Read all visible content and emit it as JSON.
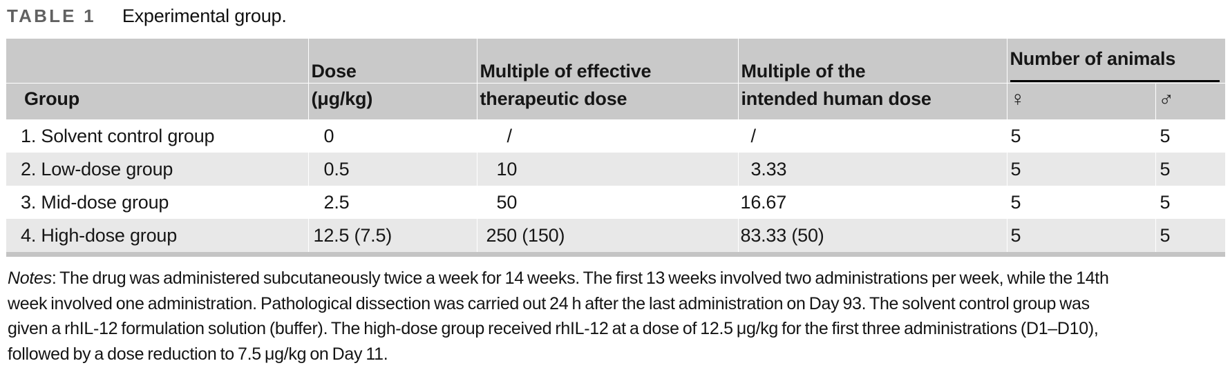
{
  "title": {
    "label": "TABLE 1",
    "caption": "Experimental group."
  },
  "table": {
    "header": {
      "group": "Group",
      "dose_top": "Dose",
      "dose_bottom": "(μg/kg)",
      "eff_top": "Multiple of effective",
      "eff_bottom": "therapeutic dose",
      "human_top": "Multiple of the",
      "human_bottom": "intended human dose",
      "animals": "Number of animals",
      "female": "♀",
      "male": "♂"
    },
    "rows": [
      {
        "group": "1. Solvent control group",
        "dose": "0",
        "mult_eff": "/",
        "mult_human": "/",
        "female": "5",
        "male": "5"
      },
      {
        "group": "2. Low-dose group",
        "dose": "0.5",
        "mult_eff": "10",
        "mult_human": "3.33",
        "female": "5",
        "male": "5"
      },
      {
        "group": "3. Mid-dose group",
        "dose": "2.5",
        "mult_eff": "50",
        "mult_human": "16.67",
        "female": "5",
        "male": "5"
      },
      {
        "group": "4. High-dose group",
        "dose": "12.5 (7.5)",
        "mult_eff": "250 (150)",
        "mult_human": "83.33 (50)",
        "female": "5",
        "male": "5"
      }
    ]
  },
  "notes": {
    "label": "Notes",
    "lines": [
      ": The drug was administered subcutaneously twice a week for 14 weeks. The first 13 weeks involved two administrations per week, while the 14th",
      "week involved one administration. Pathological dissection was carried out 24 h after the last administration on Day 93. The solvent control group was",
      "given a rhIL-12 formulation solution (buffer). The high-dose group received rhIL-12 at a dose of 12.5 μg/kg for the first three administrations (D1–D10),",
      "followed by a dose reduction to 7.5 μg/kg on Day 11."
    ]
  },
  "colors": {
    "header_bg": "#c9c9c9",
    "row_alt_bg": "#e8e8e8",
    "bottom_bar": "#c4c4c4",
    "title_label": "#616161",
    "text": "#161616"
  }
}
